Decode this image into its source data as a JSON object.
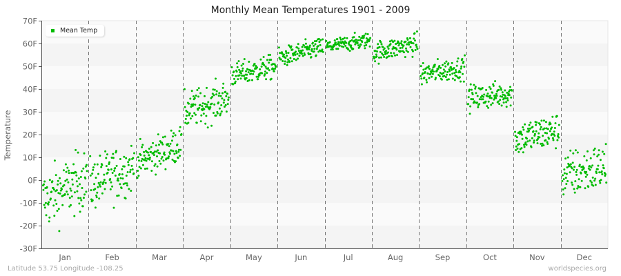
{
  "chart_data": {
    "type": "scatter",
    "title": "Monthly Mean Temperatures 1901 - 2009",
    "xlabel": "",
    "ylabel": "Temperature",
    "ylim": [
      -30,
      70
    ],
    "yticks": [
      "70F",
      "60F",
      "50F",
      "40F",
      "30F",
      "20F",
      "10F",
      "0F",
      "-10F",
      "-20F",
      "-30F"
    ],
    "ytick_values": [
      70,
      60,
      50,
      40,
      30,
      20,
      10,
      0,
      -10,
      -20,
      -30
    ],
    "categories": [
      "Jan",
      "Feb",
      "Mar",
      "Apr",
      "May",
      "Jun",
      "Jul",
      "Aug",
      "Sep",
      "Oct",
      "Nov",
      "Dec"
    ],
    "points_per_month": 109,
    "grid": "alternating horizontal bands, dashed vertical month separators",
    "legend": {
      "position": "top-left",
      "entries": [
        "Mean Temp"
      ]
    },
    "series": [
      {
        "name": "Mean Temp",
        "color": "#00bb00",
        "monthly_summary": [
          {
            "month": "Jan",
            "mean": -4,
            "min": -27,
            "max": 15,
            "trend": 10
          },
          {
            "month": "Feb",
            "mean": 2,
            "min": -15,
            "max": 22,
            "trend": 8
          },
          {
            "month": "Mar",
            "mean": 12,
            "min": 1,
            "max": 26,
            "trend": 8
          },
          {
            "month": "Apr",
            "mean": 33,
            "min": 20,
            "max": 46,
            "trend": 6
          },
          {
            "month": "May",
            "mean": 48,
            "min": 38,
            "max": 55,
            "trend": 4
          },
          {
            "month": "Jun",
            "mean": 56,
            "min": 48,
            "max": 62,
            "trend": 5
          },
          {
            "month": "Jul",
            "mean": 60,
            "min": 54,
            "max": 65,
            "trend": 3
          },
          {
            "month": "Aug",
            "mean": 58,
            "min": 51,
            "max": 66,
            "trend": 4
          },
          {
            "month": "Sep",
            "mean": 48,
            "min": 40,
            "max": 56,
            "trend": 3
          },
          {
            "month": "Oct",
            "mean": 37,
            "min": 26,
            "max": 44,
            "trend": 2
          },
          {
            "month": "Nov",
            "mean": 20,
            "min": 7,
            "max": 32,
            "trend": 4
          },
          {
            "month": "Dec",
            "mean": 4,
            "min": -15,
            "max": 19,
            "trend": 4
          }
        ]
      }
    ]
  },
  "header": {
    "title": "Monthly Mean Temperatures 1901 - 2009"
  },
  "axis": {
    "ylabel": "Temperature"
  },
  "legend": {
    "label": "Mean Temp"
  },
  "footer": {
    "location": "Latitude 53.75 Longitude -108.25",
    "source": "worldspecies.org"
  },
  "colors": {
    "dot": "#00bb00",
    "band_dark": "#f4f4f4",
    "band_light": "#fafafa",
    "separator": "#777777",
    "axis": "#555555"
  }
}
